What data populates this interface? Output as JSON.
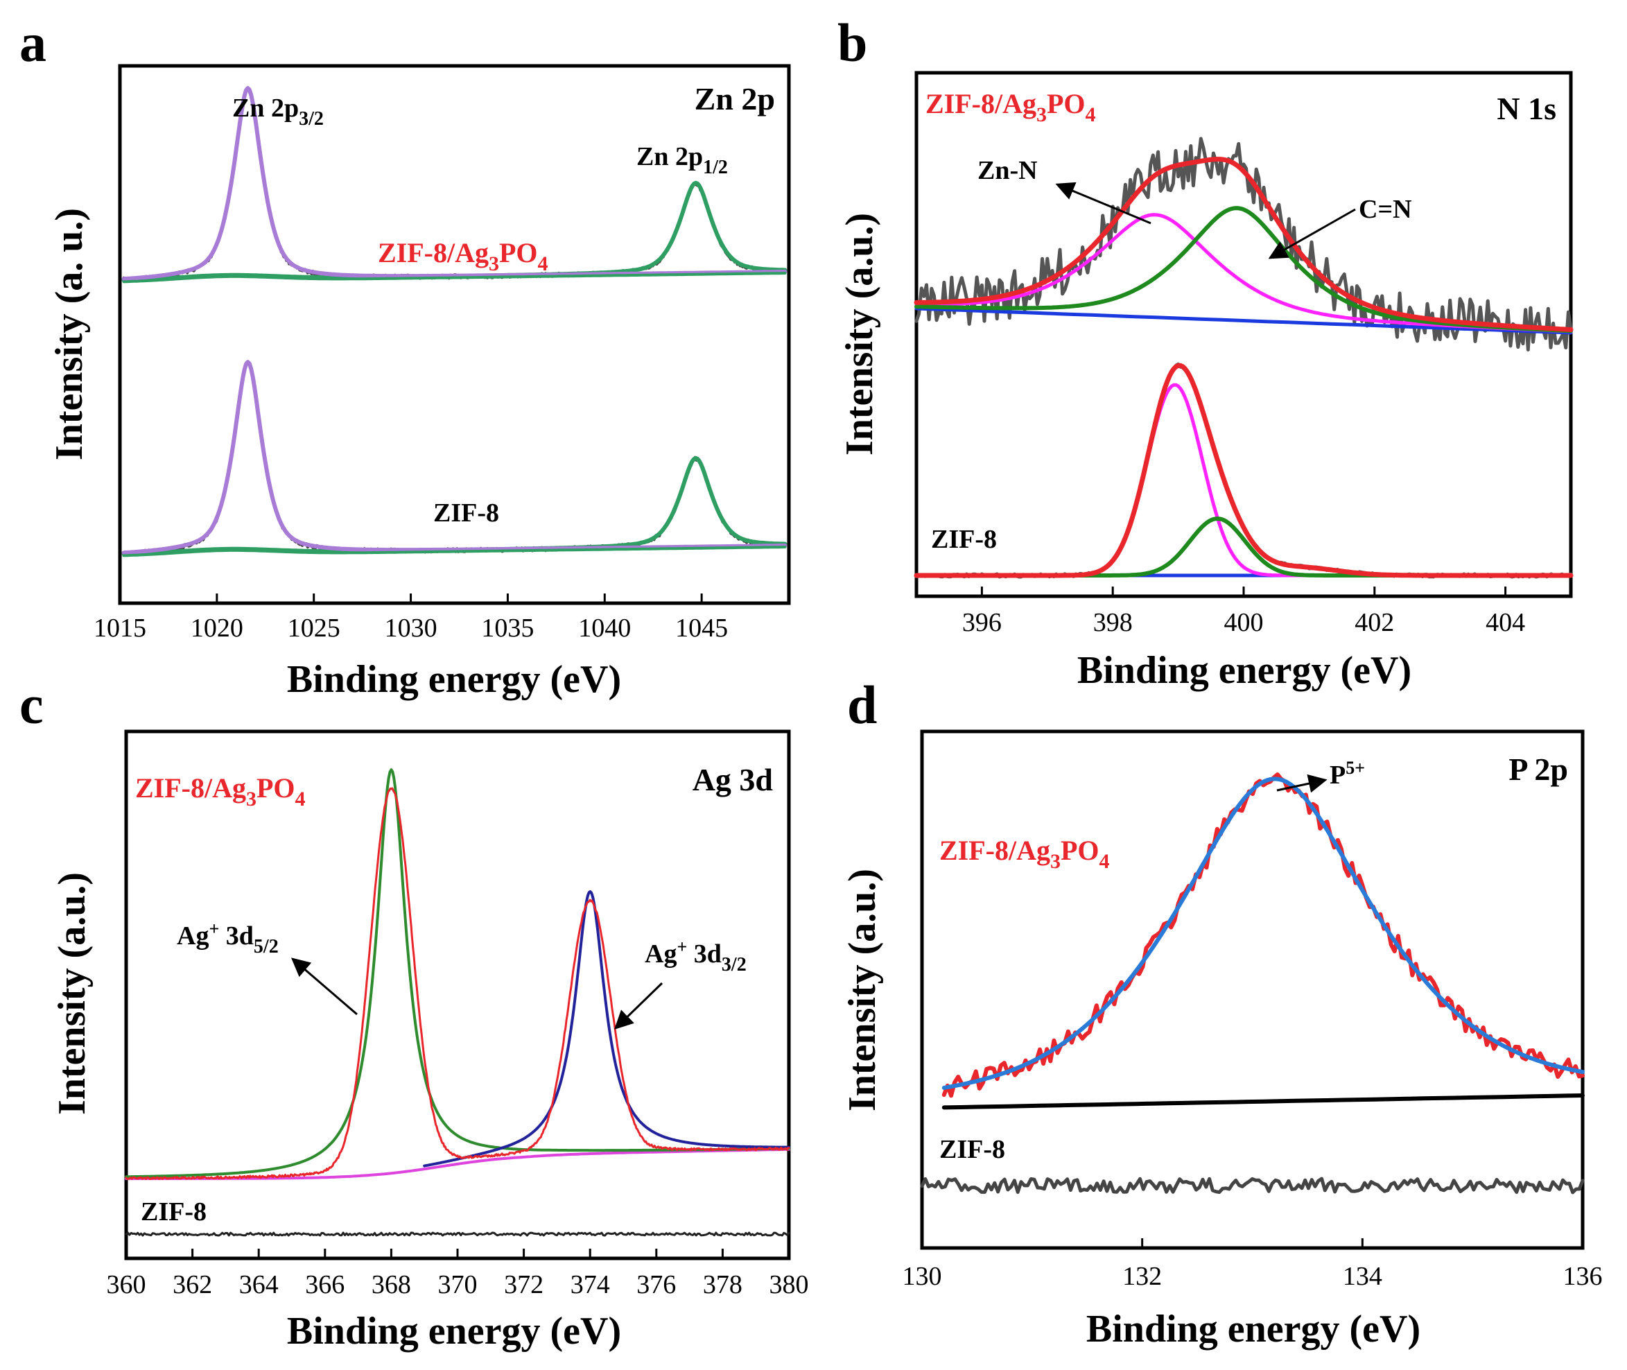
{
  "chart_data": [
    {
      "panel": "a",
      "type": "line",
      "title": "Zn 2p",
      "xlabel": "Binding energy (eV)",
      "ylabel": "Intensity (a. u.)",
      "xlim": [
        1015,
        1049.5
      ],
      "xticks": [
        "1015",
        "1020",
        "1025",
        "1030",
        "1035",
        "1040",
        "1045"
      ],
      "tick_values": [
        1015,
        1020,
        1025,
        1030,
        1035,
        1040,
        1045
      ],
      "sample_labels": [
        "ZIF-8/Ag3PO4",
        "ZIF-8"
      ],
      "peak_labels": [
        "Zn 2p3/2",
        "Zn 2p1/2"
      ],
      "peaks_eV": [
        1021.6,
        1044.7
      ],
      "colors": {
        "raw": "#444444",
        "fit_3_2": "#a77bd6",
        "fit_1_2": "#2e9e62",
        "red_label": "#e8262b"
      }
    },
    {
      "panel": "b",
      "type": "line",
      "title": "N 1s",
      "xlabel": "Binding energy (eV)",
      "ylabel": "Intensity (a.u.)",
      "xlim": [
        395,
        405
      ],
      "xticks": [
        "396",
        "398",
        "400",
        "402",
        "404"
      ],
      "tick_values": [
        396,
        398,
        400,
        402,
        404
      ],
      "sample_labels": [
        "ZIF-8/Ag3PO4",
        "ZIF-8"
      ],
      "peak_labels": [
        "Zn-N",
        "C=N"
      ],
      "peaks_eV": {
        "ZIF-8/Ag3PO4": [
          398.7,
          399.9
        ],
        "ZIF-8": [
          398.95,
          399.6
        ]
      },
      "colors": {
        "raw": "#555555",
        "envelope": "#e8262b",
        "zn_n": "#ff22ff",
        "c_n": "#1e8a1e",
        "baseline": "#1a3ae0"
      }
    },
    {
      "panel": "c",
      "type": "line",
      "title": "Ag 3d",
      "xlabel": "Binding energy (eV)",
      "ylabel": "Intensity (a.u.)",
      "xlim": [
        360,
        380
      ],
      "xticks": [
        "360",
        "362",
        "364",
        "366",
        "368",
        "370",
        "372",
        "374",
        "376",
        "378",
        "380"
      ],
      "tick_values": [
        360,
        362,
        364,
        366,
        368,
        370,
        372,
        374,
        376,
        378,
        380
      ],
      "sample_labels": [
        "ZIF-8/Ag3PO4",
        "ZIF-8"
      ],
      "peak_labels": [
        "Ag+ 3d5/2",
        "Ag+ 3d3/2"
      ],
      "peaks_eV": [
        368.0,
        374.0
      ],
      "colors": {
        "raw": "#e8262b",
        "fit_5_2": "#2e8b2e",
        "fit_3_2": "#22229a",
        "background": "#dd44dd",
        "zif8": "#222222"
      }
    },
    {
      "panel": "d",
      "type": "line",
      "title": "P 2p",
      "xlabel": "Binding energy (eV)",
      "ylabel": "Intensity (a.u.)",
      "xlim": [
        130,
        136
      ],
      "xticks": [
        "130",
        "132",
        "134",
        "136"
      ],
      "tick_values": [
        130,
        132,
        134,
        136
      ],
      "sample_labels": [
        "ZIF-8/Ag3PO4",
        "ZIF-8"
      ],
      "peak_labels": [
        "P5+"
      ],
      "peaks_eV": [
        133.2
      ],
      "colors": {
        "raw": "#e8262b",
        "fit": "#2a7bd8",
        "baseline": "#000000",
        "zif8": "#444444"
      }
    }
  ],
  "panel_letters": [
    "a",
    "b",
    "c",
    "d"
  ],
  "text": {
    "a": {
      "title": "Zn 2p",
      "xlabel": "Binding energy (eV)",
      "ylabel": "Intensity (a. u.)",
      "sample1": "ZIF-8/Ag",
      "sample1_sub1": "3",
      "sample1_mid": "PO",
      "sample1_sub2": "4",
      "sample2": "ZIF-8",
      "peak1": "Zn 2p",
      "peak1_sub": "3/2",
      "peak2": "Zn  2p",
      "peak2_sub": "1/2"
    },
    "b": {
      "title": "N 1s",
      "xlabel": "Binding energy (eV)",
      "ylabel": "Intensity (a.u.)",
      "sample1": "ZIF-8/Ag",
      "sample1_sub1": "3",
      "sample1_mid": "PO",
      "sample1_sub2": "4",
      "sample2": "ZIF-8",
      "peak1": "Zn-N",
      "peak2": "C=N"
    },
    "c": {
      "title": "Ag 3d",
      "xlabel": "Binding energy (eV)",
      "ylabel": "Intensity (a.u.)",
      "sample1": "ZIF-8/Ag",
      "sample1_sub1": "3",
      "sample1_mid": "PO",
      "sample1_sub2": "4",
      "sample2": "ZIF-8",
      "peak1": "Ag",
      "peak1_sup": "+",
      "peak1_rest": " 3d",
      "peak1_sub": "5/2",
      "peak2": "Ag",
      "peak2_sup": "+",
      "peak2_rest": " 3d",
      "peak2_sub": "3/2"
    },
    "d": {
      "title": "P 2p",
      "xlabel": "Binding energy (eV)",
      "ylabel": "Intensity (a.u.)",
      "sample1": "ZIF-8/Ag",
      "sample1_sub1": "3",
      "sample1_mid": "PO",
      "sample1_sub2": "4",
      "sample2": "ZIF-8",
      "peak1": "P",
      "peak1_sup": "5+"
    }
  }
}
